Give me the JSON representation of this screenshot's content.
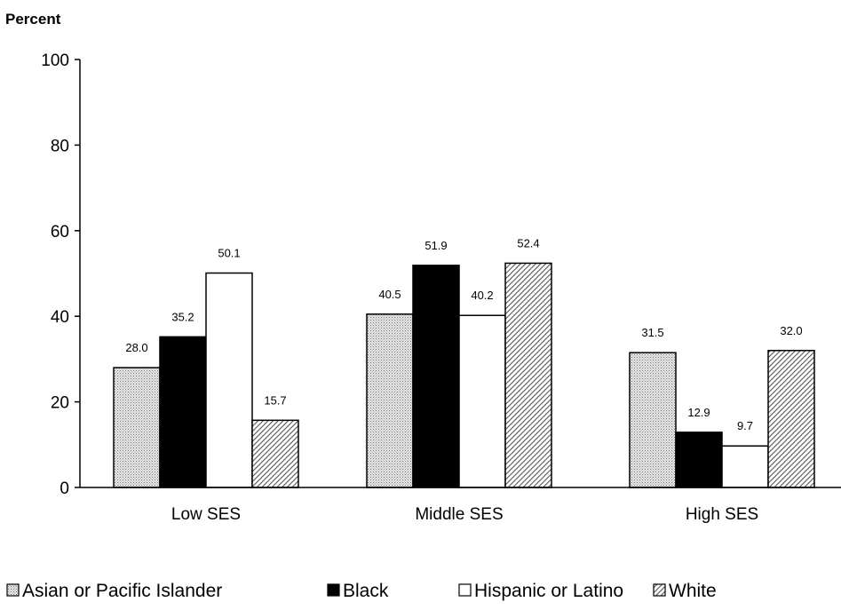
{
  "chart_data": {
    "type": "bar",
    "title": "",
    "xlabel": "",
    "ylabel": "Percent",
    "ylim": [
      0,
      100
    ],
    "yticks": [
      0,
      20,
      40,
      60,
      80,
      100
    ],
    "categories": [
      "Low SES",
      "Middle SES",
      "High SES"
    ],
    "series": [
      {
        "name": "Asian or Pacific Islander",
        "values": [
          28.0,
          40.5,
          31.5
        ],
        "pattern": "dots",
        "fill": "#d9d9d9"
      },
      {
        "name": "Black",
        "values": [
          35.2,
          51.9,
          12.9
        ],
        "pattern": "solid",
        "fill": "#000000"
      },
      {
        "name": "Hispanic or Latino",
        "values": [
          50.1,
          40.2,
          9.7
        ],
        "pattern": "solid",
        "fill": "#ffffff"
      },
      {
        "name": "White",
        "values": [
          15.7,
          52.4,
          32.0
        ],
        "pattern": "diagonal-hatch",
        "fill": "#9a9a9a"
      }
    ],
    "data_labels": [
      [
        "28.0",
        "40.5",
        "31.5"
      ],
      [
        "35.2",
        "51.9",
        "12.9"
      ],
      [
        "50.1",
        "40.2",
        "9.7"
      ],
      [
        "15.7",
        "52.4",
        "32.0"
      ]
    ],
    "legend_position": "bottom",
    "grid": false
  }
}
